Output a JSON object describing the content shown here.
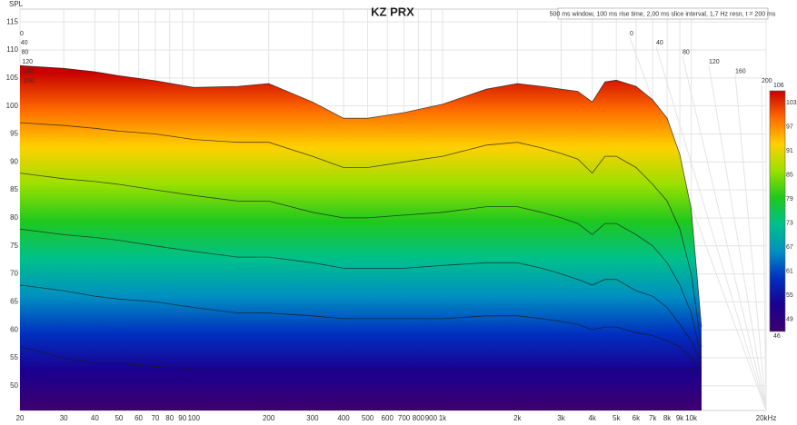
{
  "chart_data": {
    "type": "waterfall",
    "title": "KZ PRX",
    "subtitle": "500 ms window, 100 ms rise time, 2,00 ms slice interval, 1,7 Hz resn, t = 200 ms",
    "y_label": "SPL",
    "log_x": true,
    "grid": true,
    "xlim": [
      20,
      20000
    ],
    "ylim": [
      45.6,
      117.3
    ],
    "yticks": [
      50,
      55,
      60,
      65,
      70,
      75,
      80,
      85,
      90,
      95,
      100,
      105,
      110,
      115
    ],
    "xticks": [
      20,
      30,
      40,
      50,
      60,
      70,
      80,
      90,
      100,
      200,
      300,
      400,
      500,
      600,
      700,
      800,
      900,
      {
        "value": 1000,
        "label": "1k"
      },
      {
        "value": 2000,
        "label": "2k"
      },
      {
        "value": 3000,
        "label": "3k"
      },
      {
        "value": 4000,
        "label": "4k"
      },
      {
        "value": 5000,
        "label": "5k"
      },
      {
        "value": 6000,
        "label": "6k"
      },
      {
        "value": 7000,
        "label": "7k"
      },
      {
        "value": 8000,
        "label": "8k"
      },
      {
        "value": 9000,
        "label": "9k"
      },
      {
        "value": 10000,
        "label": "10k"
      },
      {
        "value": 20000,
        "label": "20kHz"
      }
    ],
    "depth_ticks": [
      0,
      40,
      80,
      120,
      160,
      200
    ],
    "frequencies": [
      20,
      30,
      40,
      50,
      70,
      100,
      150,
      200,
      300,
      400,
      500,
      700,
      1000,
      1500,
      2000,
      2500,
      3000,
      3500,
      4000,
      4500,
      5000,
      6000,
      7000,
      8000,
      9000,
      10000,
      11000
    ],
    "slices": [
      {
        "t": 0,
        "values": [
          107.2,
          106.7,
          106.1,
          105.4,
          104.5,
          103.3,
          103.5,
          104.0,
          100.7,
          97.8,
          97.8,
          98.8,
          100.3,
          103.0,
          104.0,
          103.5,
          103.0,
          102.6,
          100.7,
          104.3,
          104.6,
          103.5,
          101.1,
          97.8,
          91.3,
          81.6,
          60.5
        ]
      },
      {
        "t": 40,
        "values": [
          97,
          96.5,
          96,
          95.5,
          95,
          94,
          93.5,
          93.5,
          91,
          89,
          89,
          90,
          91,
          93,
          93.5,
          92.5,
          91.5,
          90.5,
          88,
          91,
          91,
          89,
          86,
          83,
          78,
          70,
          57
        ]
      },
      {
        "t": 80,
        "values": [
          88,
          87,
          86.5,
          86,
          85,
          84,
          83,
          83,
          81,
          80,
          80,
          80.5,
          81,
          82,
          82,
          81,
          80,
          79,
          77,
          79,
          79,
          77,
          75,
          72,
          68,
          63,
          55
        ]
      },
      {
        "t": 120,
        "values": [
          78,
          77,
          76.5,
          76,
          75,
          74,
          73,
          73,
          72,
          71,
          71,
          71,
          71.5,
          72,
          72,
          71,
          70,
          69,
          68,
          69,
          69,
          67,
          66,
          64,
          61,
          58,
          54
        ]
      },
      {
        "t": 160,
        "values": [
          68,
          67,
          66,
          65.5,
          65,
          64,
          63,
          63,
          62.5,
          62,
          62,
          62,
          62,
          62.5,
          62.5,
          62,
          61.5,
          61,
          60,
          60.5,
          60.5,
          59.5,
          59,
          58,
          57,
          55,
          53
        ]
      },
      {
        "t": 200,
        "values": [
          57,
          55,
          54,
          54,
          53.5,
          53,
          53,
          53,
          53,
          53,
          53,
          53,
          53,
          53,
          53,
          53,
          53,
          53,
          53,
          53,
          53,
          53,
          53,
          53,
          53,
          53,
          52
        ]
      }
    ],
    "colorbar": {
      "lim": [
        46,
        106
      ],
      "ticks": [
        103,
        97,
        91,
        85,
        79,
        73,
        67,
        61,
        55,
        49
      ],
      "colors": [
        "#c80000",
        "#ff6a00",
        "#ffd000",
        "#9be000",
        "#1ec81e",
        "#00c08c",
        "#0090c0",
        "#0030c0",
        "#1a0090",
        "#3c0070"
      ]
    }
  }
}
